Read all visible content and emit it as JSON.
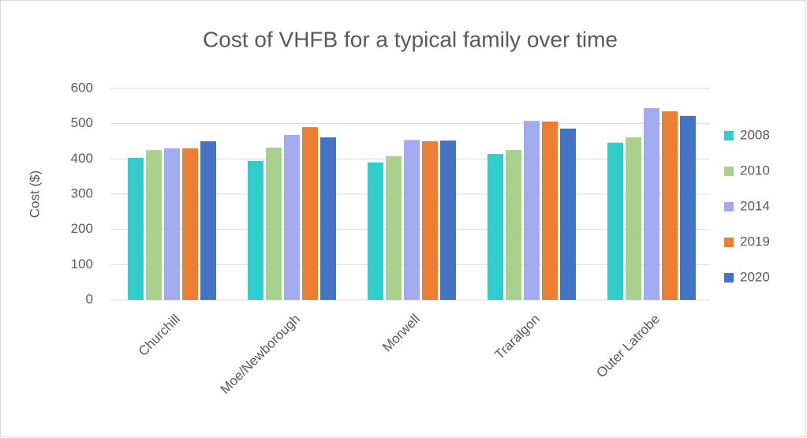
{
  "chart_data": {
    "type": "bar",
    "title": "Cost of VHFB for a typical family over time",
    "y_label": "Cost ($)",
    "categories": [
      "Churchill",
      "Moe/Newborough",
      "Morwell",
      "Traralgon",
      "Outer Latrobe"
    ],
    "series": [
      {
        "name": "2008",
        "color": "#33CCCC",
        "values": [
          403,
          394,
          390,
          414,
          446
        ]
      },
      {
        "name": "2010",
        "color": "#A9D18E",
        "values": [
          425,
          432,
          408,
          425,
          461
        ]
      },
      {
        "name": "2014",
        "color": "#A3ABF0",
        "values": [
          430,
          468,
          454,
          508,
          544
        ]
      },
      {
        "name": "2019",
        "color": "#ED7D31",
        "values": [
          430,
          490,
          450,
          506,
          535
        ]
      },
      {
        "name": "2020",
        "color": "#4472C4",
        "values": [
          450,
          461,
          452,
          486,
          522
        ]
      }
    ],
    "ylim": [
      0,
      600
    ],
    "yticks": [
      0,
      100,
      200,
      300,
      400,
      500,
      600
    ],
    "grid": true,
    "legend": "right"
  }
}
